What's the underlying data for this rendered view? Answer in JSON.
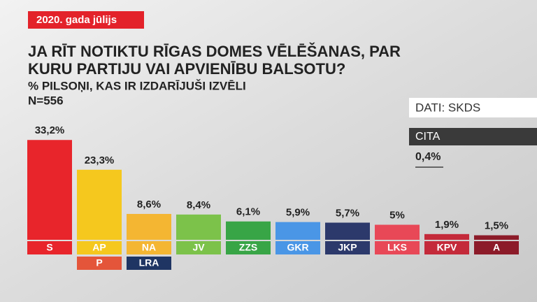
{
  "tag": "2020. gada jūlijs",
  "chart_data": {
    "type": "bar",
    "title": [
      "JA RĪT NOTIKTU RĪGAS DOMES VĒLĒŠANAS, PAR",
      "KURU PARTIJU VAI APVIENĪBU BALSOTU?"
    ],
    "subtitle": [
      "% PILSOŅI, KAS IR IZDARĪJUŠI IZVĒLI",
      "N=556"
    ],
    "source": "DATI: SKDS",
    "categories": [
      "S",
      "AP",
      "NA",
      "JV",
      "ZZS",
      "GKR",
      "JKP",
      "LKS",
      "KPV",
      "A"
    ],
    "sub_categories": [
      null,
      "P",
      "LRA",
      null,
      null,
      null,
      null,
      null,
      null,
      null
    ],
    "sub_colors": [
      null,
      "#e4553a",
      "#1f3563",
      null,
      null,
      null,
      null,
      null,
      null,
      null
    ],
    "values": [
      33.2,
      23.3,
      8.6,
      8.4,
      6.1,
      5.9,
      5.7,
      5,
      1.9,
      1.5
    ],
    "value_labels": [
      "33,2%",
      "23,3%",
      "8,6%",
      "8,4%",
      "6,1%",
      "5,9%",
      "5,7%",
      "5%",
      "1,9%",
      "1,5%"
    ],
    "colors": [
      "#e8252b",
      "#f5c81e",
      "#f4b632",
      "#7cc24a",
      "#38a546",
      "#4a96e6",
      "#2c396b",
      "#e84857",
      "#c42a3a",
      "#8c1b29"
    ],
    "other": {
      "name": "CITA",
      "value": 0.4,
      "value_label": "0,4%"
    }
  }
}
